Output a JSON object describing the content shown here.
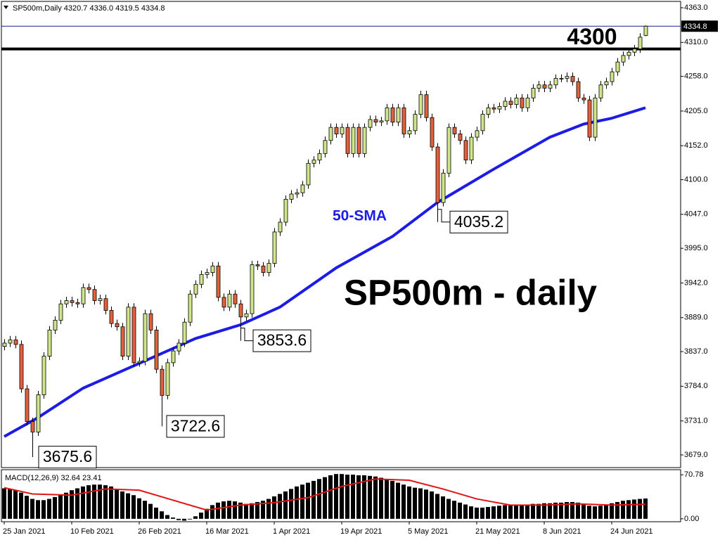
{
  "chart_data": {
    "type": "candlestick",
    "header": "SP500m,Daily  4320.7 4336.0 4319.5 4334.8",
    "annotation": "SP500m - daily",
    "level": 4300,
    "up_color": "#cfe68a",
    "down_color": "#e2603c",
    "ylim": [
      3659.6,
      4372.7
    ],
    "yticks": [
      {
        "value": 4363,
        "label": "4363.0"
      },
      {
        "value": 4310,
        "label": "4310.0"
      },
      {
        "value": 4258,
        "label": "4258.0"
      },
      {
        "value": 4205,
        "label": "4205.0"
      },
      {
        "value": 4152,
        "label": "4152.0"
      },
      {
        "value": 4100,
        "label": "4100.0"
      },
      {
        "value": 4047,
        "label": "4047.0"
      },
      {
        "value": 3995,
        "label": "3995.0"
      },
      {
        "value": 3942,
        "label": "3942.0"
      },
      {
        "value": 3889,
        "label": "3889.0"
      },
      {
        "value": 3837,
        "label": "3837.0"
      },
      {
        "value": 3784,
        "label": "3784.0"
      },
      {
        "value": 3731,
        "label": "3731.0"
      },
      {
        "value": 3679,
        "label": "3679.0"
      }
    ],
    "categories": [
      "25 Jan 2021",
      null,
      null,
      null,
      null,
      null,
      null,
      null,
      null,
      null,
      null,
      null,
      "10 Feb 2021",
      null,
      null,
      null,
      null,
      null,
      null,
      null,
      null,
      null,
      null,
      null,
      "26 Feb 2021",
      null,
      null,
      null,
      null,
      null,
      null,
      null,
      null,
      null,
      null,
      null,
      "16 Mar 2021",
      null,
      null,
      null,
      null,
      null,
      null,
      null,
      null,
      null,
      null,
      null,
      "1 Apr 2021",
      null,
      null,
      null,
      null,
      null,
      null,
      null,
      null,
      null,
      null,
      null,
      "19 Apr 2021",
      null,
      null,
      null,
      null,
      null,
      null,
      null,
      null,
      null,
      null,
      null,
      "5 May 2021",
      null,
      null,
      null,
      null,
      null,
      null,
      null,
      null,
      null,
      null,
      null,
      "21 May 2021",
      null,
      null,
      null,
      null,
      null,
      null,
      null,
      null,
      null,
      null,
      null,
      "8 Jun 2021",
      null,
      null,
      null,
      null,
      null,
      null,
      null,
      null,
      null,
      null,
      null,
      "24 Jun 2021",
      null,
      null,
      null,
      null,
      null,
      null
    ],
    "open": [
      3845,
      3850,
      3855,
      3848,
      3780,
      3730,
      3714,
      3771,
      3830,
      3870,
      3885,
      3910,
      3915,
      3912,
      3910,
      3935,
      3932,
      3915,
      3918,
      3900,
      3880,
      3875,
      3830,
      3905,
      3820,
      3822,
      3895,
      3870,
      3810,
      3770,
      3820,
      3838,
      3850,
      3882,
      3925,
      3940,
      3955,
      3958,
      3968,
      3920,
      3905,
      3925,
      3910,
      3890,
      3895,
      3970,
      3968,
      3958,
      3972,
      4020,
      4035,
      4070,
      4078,
      4080,
      4092,
      4125,
      4130,
      4140,
      4160,
      4180,
      4170,
      4180,
      4140,
      4180,
      4140,
      4180,
      4192,
      4188,
      4190,
      4210,
      4188,
      4210,
      4170,
      4175,
      4200,
      4230,
      4195,
      4150,
      4065,
      4110,
      4180,
      4170,
      4160,
      4130,
      4165,
      4175,
      4200,
      4210,
      4208,
      4212,
      4220,
      4215,
      4225,
      4210,
      4225,
      4240,
      4245,
      4240,
      4245,
      4255,
      4255,
      4258,
      4250,
      4225,
      4222,
      4165,
      4225,
      4245,
      4250,
      4265,
      4280,
      4290,
      4295,
      4300,
      4320.7
    ],
    "high": [
      3856,
      3861,
      3861,
      3854,
      3786,
      3736,
      3777,
      3836,
      3876,
      3891,
      3916,
      3921,
      3921,
      3918,
      3941,
      3941,
      3938,
      3924,
      3924,
      3906,
      3886,
      3881,
      3911,
      3911,
      3828,
      3901,
      3901,
      3876,
      3816,
      3826,
      3844,
      3856,
      3888,
      3931,
      3946,
      3961,
      3964,
      3974,
      3974,
      3926,
      3931,
      3931,
      3916,
      3901,
      3976,
      3976,
      3974,
      3978,
      4026,
      4041,
      4076,
      4084,
      4086,
      4098,
      4131,
      4136,
      4146,
      4166,
      4186,
      4186,
      4186,
      4186,
      4186,
      4186,
      4186,
      4198,
      4198,
      4196,
      4216,
      4216,
      4216,
      4216,
      4181,
      4206,
      4236,
      4236,
      4201,
      4156,
      4116,
      4186,
      4186,
      4176,
      4166,
      4171,
      4181,
      4206,
      4216,
      4216,
      4218,
      4226,
      4226,
      4231,
      4231,
      4231,
      4246,
      4251,
      4251,
      4251,
      4261,
      4261,
      4264,
      4264,
      4256,
      4231,
      4228,
      4231,
      4251,
      4256,
      4271,
      4286,
      4296,
      4301,
      4306,
      4324,
      4336
    ],
    "low": [
      3839,
      3844,
      3842,
      3774,
      3724,
      3675.6,
      3708,
      3765,
      3824,
      3864,
      3879,
      3904,
      3906,
      3904,
      3904,
      3926,
      3909,
      3909,
      3894,
      3874,
      3869,
      3824,
      3824,
      3814,
      3814,
      3816,
      3864,
      3804,
      3722.6,
      3764,
      3814,
      3832,
      3844,
      3876,
      3919,
      3934,
      3949,
      3952,
      3914,
      3899,
      3899,
      3904,
      3853.6,
      3884,
      3889,
      3962,
      3952,
      3952,
      3966,
      4014,
      4029,
      4064,
      4072,
      4074,
      4086,
      4119,
      4124,
      4134,
      4154,
      4164,
      4164,
      4134,
      4134,
      4134,
      4134,
      4174,
      4182,
      4182,
      4184,
      4182,
      4182,
      4164,
      4164,
      4169,
      4194,
      4189,
      4144,
      4035.2,
      4059,
      4104,
      4164,
      4154,
      4124,
      4124,
      4159,
      4169,
      4194,
      4202,
      4202,
      4206,
      4209,
      4209,
      4204,
      4204,
      4219,
      4234,
      4234,
      4234,
      4239,
      4249,
      4249,
      4244,
      4219,
      4216,
      4159,
      4159,
      4219,
      4239,
      4244,
      4259,
      4274,
      4284,
      4289,
      4294,
      4319.5
    ],
    "close": [
      3850,
      3855,
      3848,
      3780,
      3730,
      3714,
      3771,
      3830,
      3870,
      3885,
      3910,
      3915,
      3912,
      3910,
      3935,
      3932,
      3915,
      3918,
      3900,
      3880,
      3875,
      3830,
      3905,
      3820,
      3822,
      3895,
      3870,
      3810,
      3770,
      3820,
      3838,
      3850,
      3882,
      3925,
      3940,
      3955,
      3958,
      3968,
      3920,
      3905,
      3925,
      3910,
      3890,
      3895,
      3970,
      3968,
      3958,
      3972,
      4020,
      4035,
      4070,
      4078,
      4080,
      4092,
      4125,
      4130,
      4140,
      4160,
      4180,
      4170,
      4180,
      4140,
      4180,
      4140,
      4180,
      4192,
      4188,
      4190,
      4210,
      4188,
      4210,
      4170,
      4175,
      4200,
      4230,
      4195,
      4150,
      4065,
      4110,
      4180,
      4170,
      4160,
      4130,
      4165,
      4175,
      4200,
      4210,
      4208,
      4212,
      4220,
      4215,
      4225,
      4210,
      4225,
      4240,
      4245,
      4240,
      4245,
      4255,
      4255,
      4258,
      4250,
      4225,
      4222,
      4165,
      4225,
      4245,
      4250,
      4265,
      4280,
      4290,
      4295,
      4300,
      4318,
      4334.8
    ],
    "sma": {
      "name": "50-SMA",
      "color": "#1c1ce6",
      "x": [
        0,
        6,
        14,
        24,
        34,
        42,
        49,
        59,
        69,
        77,
        87,
        97,
        103,
        108,
        114
      ],
      "values": [
        3707,
        3736,
        3781,
        3819,
        3857,
        3878,
        3905,
        3965,
        4013,
        4065,
        4116,
        4165,
        4185,
        4194,
        4210
      ]
    },
    "macd": {
      "label": "MACD(12,26,9) 32.64 23.41",
      "color": "#000000",
      "ylim": [
        -4.7,
        79
      ],
      "yticks": [
        70.78,
        {
          "value": 0,
          "label": "0.00"
        }
      ],
      "values": [
        49,
        48,
        46,
        42,
        37,
        32,
        30,
        30,
        32,
        35,
        38,
        42,
        46,
        49,
        52,
        54,
        55,
        55,
        54,
        52,
        48,
        44,
        41,
        38,
        33,
        29,
        24,
        18,
        12,
        6,
        2,
        -2,
        -3,
        -1,
        4,
        10,
        16,
        22,
        26,
        28,
        29,
        28,
        26,
        24,
        25,
        27,
        29,
        32,
        36,
        40,
        44,
        48,
        52,
        55,
        58,
        61,
        64,
        67,
        70,
        72,
        72,
        71,
        71,
        70,
        70,
        69,
        68,
        66,
        64,
        61,
        58,
        55,
        52,
        50,
        49,
        47,
        44,
        40,
        36,
        32,
        29,
        26,
        23,
        20,
        18,
        18,
        19,
        20,
        21,
        22,
        22,
        23,
        23,
        23,
        24,
        24,
        25,
        25,
        26,
        26,
        27,
        27,
        26,
        24,
        21,
        20,
        21,
        23,
        25,
        27,
        29,
        30,
        31,
        32,
        32.64
      ],
      "signal": {
        "color": "#e01515",
        "x": [
          0,
          5,
          12,
          18,
          24,
          30,
          36,
          42,
          48,
          54,
          60,
          66,
          72,
          78,
          84,
          90,
          96,
          102,
          108,
          114
        ],
        "values": [
          50,
          40,
          38,
          48,
          46,
          30,
          14,
          22,
          26,
          34,
          52,
          64,
          62,
          48,
          32,
          22,
          22,
          24,
          22,
          23.41
        ]
      }
    }
  }
}
